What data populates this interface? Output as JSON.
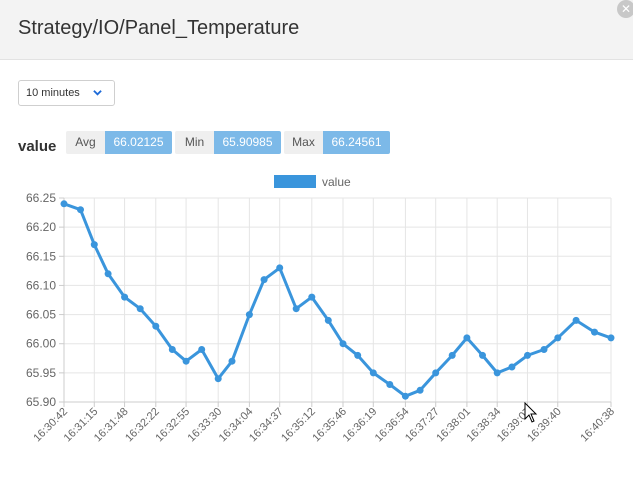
{
  "window": {
    "title": "Strategy/IO/Panel_Temperature"
  },
  "range_select": {
    "value": "10 minutes"
  },
  "series_label": "value",
  "stats": {
    "avg_label": "Avg",
    "avg": "66.02125",
    "min_label": "Min",
    "min": "65.90985",
    "max_label": "Max",
    "max": "66.24561"
  },
  "colors": {
    "series": "#3a95dc",
    "stat_value_bg": "#7cb9e8",
    "grid": "#e5e5e5"
  },
  "chart_data": {
    "type": "line",
    "title": "",
    "xlabel": "",
    "ylabel": "",
    "legend": {
      "entries": [
        "value"
      ],
      "position": "top-center"
    },
    "ylim": [
      65.9,
      66.25
    ],
    "y_ticks": [
      "66.25",
      "66.20",
      "66.15",
      "66.10",
      "66.05",
      "66.00",
      "65.95",
      "65.90"
    ],
    "x_ticks": [
      "16:30:42",
      "16:31:15",
      "16:31:48",
      "16:32:22",
      "16:32:55",
      "16:33:30",
      "16:34:04",
      "16:34:37",
      "16:35:12",
      "16:35:46",
      "16:36:19",
      "16:36:54",
      "16:37:27",
      "16:38:01",
      "16:38:34",
      "16:39:07",
      "16:39:40",
      "16:40:38"
    ],
    "grid": true,
    "series": [
      {
        "name": "value",
        "x": [
          "16:30:42",
          "16:31:00",
          "16:31:15",
          "16:31:30",
          "16:31:48",
          "16:32:05",
          "16:32:22",
          "16:32:40",
          "16:32:55",
          "16:33:12",
          "16:33:30",
          "16:33:45",
          "16:34:04",
          "16:34:20",
          "16:34:37",
          "16:34:55",
          "16:35:12",
          "16:35:30",
          "16:35:46",
          "16:36:02",
          "16:36:19",
          "16:36:37",
          "16:36:54",
          "16:37:10",
          "16:37:27",
          "16:37:45",
          "16:38:01",
          "16:38:18",
          "16:38:34",
          "16:38:50",
          "16:39:07",
          "16:39:25",
          "16:39:40",
          "16:40:00",
          "16:40:20",
          "16:40:38"
        ],
        "values": [
          66.24,
          66.23,
          66.17,
          66.12,
          66.08,
          66.06,
          66.03,
          65.99,
          65.97,
          65.99,
          65.94,
          65.97,
          66.05,
          66.11,
          66.13,
          66.06,
          66.08,
          66.04,
          66.0,
          65.98,
          65.95,
          65.93,
          65.91,
          65.92,
          65.95,
          65.98,
          66.01,
          65.98,
          65.95,
          65.96,
          65.98,
          65.99,
          66.01,
          66.04,
          66.02,
          66.01
        ]
      }
    ]
  }
}
